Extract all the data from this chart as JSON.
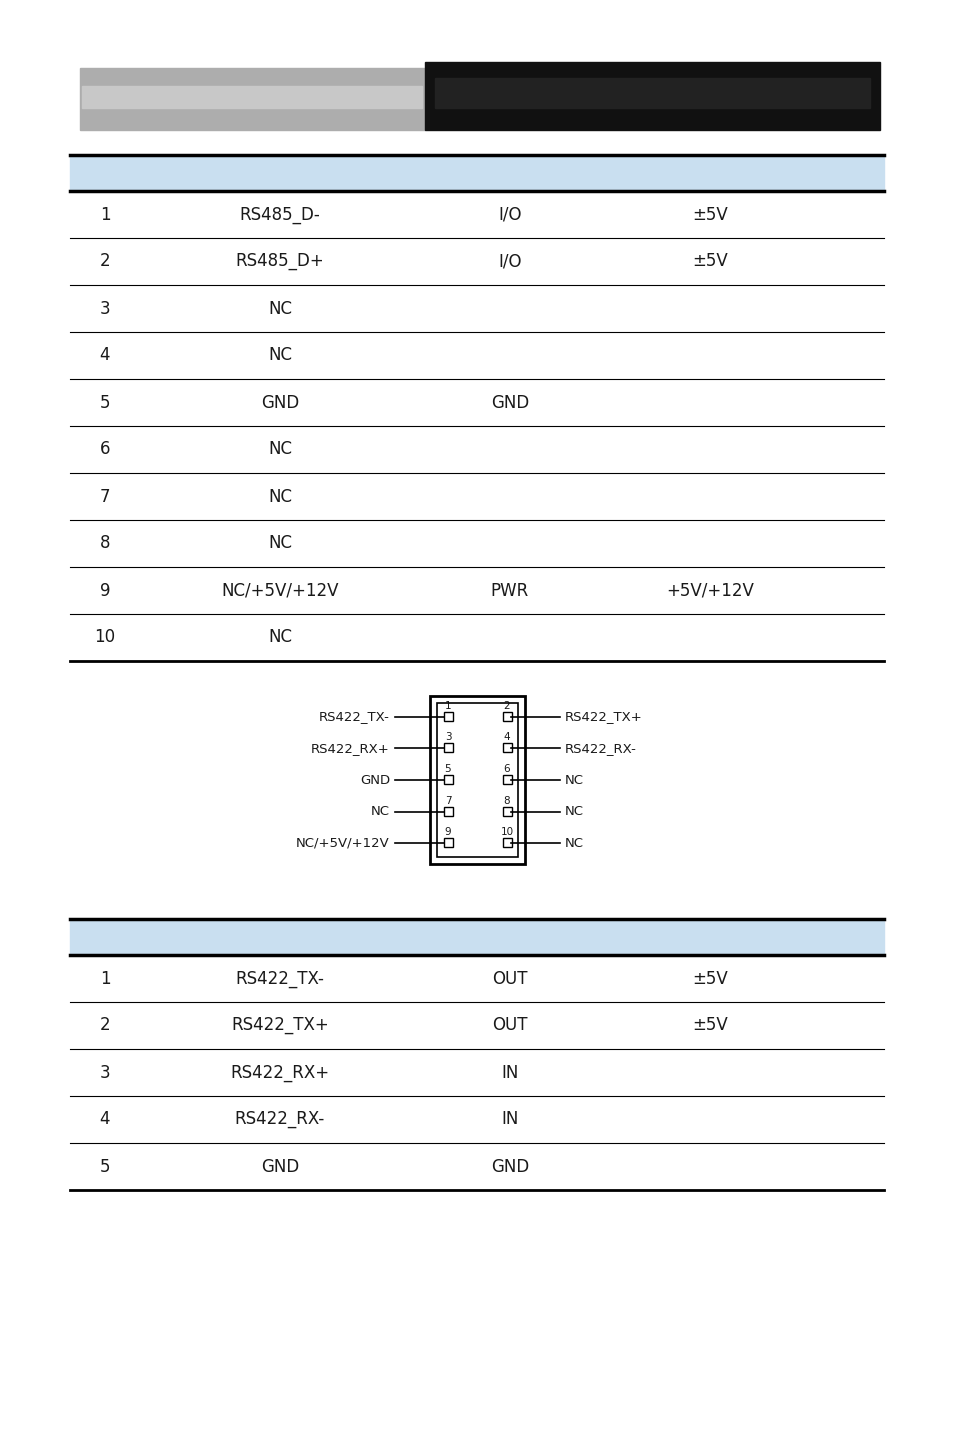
{
  "header_gray_color": "#adadad",
  "header_black_color": "#111111",
  "table1_header_bg": "#c9dff0",
  "table1_rows": [
    [
      "1",
      "RS485_D-",
      "I/O",
      "±5V"
    ],
    [
      "2",
      "RS485_D+",
      "I/O",
      "±5V"
    ],
    [
      "3",
      "NC",
      "",
      ""
    ],
    [
      "4",
      "NC",
      "",
      ""
    ],
    [
      "5",
      "GND",
      "GND",
      ""
    ],
    [
      "6",
      "NC",
      "",
      ""
    ],
    [
      "7",
      "NC",
      "",
      ""
    ],
    [
      "8",
      "NC",
      "",
      ""
    ],
    [
      "9",
      "NC/+5V/+12V",
      "PWR",
      "+5V/+12V"
    ],
    [
      "10",
      "NC",
      "",
      ""
    ]
  ],
  "table2_header_bg": "#c9dff0",
  "table2_rows": [
    [
      "1",
      "RS422_TX-",
      "OUT",
      "±5V"
    ],
    [
      "2",
      "RS422_TX+",
      "OUT",
      "±5V"
    ],
    [
      "3",
      "RS422_RX+",
      "IN",
      ""
    ],
    [
      "4",
      "RS422_RX-",
      "IN",
      ""
    ],
    [
      "5",
      "GND",
      "GND",
      ""
    ]
  ],
  "diagram_labels_left": [
    "RS422_TX-",
    "RS422_RX+",
    "GND",
    "NC",
    "NC/+5V/+12V"
  ],
  "diagram_labels_right": [
    "RS422_TX+",
    "RS422_RX-",
    "NC",
    "NC",
    "NC"
  ],
  "diagram_pin_numbers_left": [
    "1",
    "3",
    "5",
    "7",
    "9"
  ],
  "diagram_pin_numbers_right": [
    "2",
    "4",
    "6",
    "8",
    "10"
  ],
  "bg_color": "#ffffff",
  "text_color": "#1a1a1a"
}
